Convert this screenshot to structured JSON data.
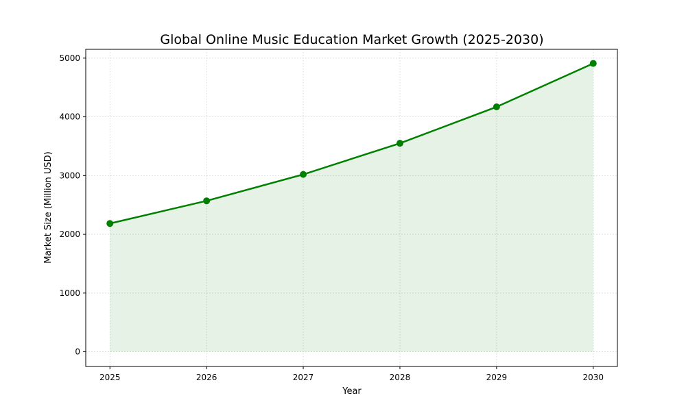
{
  "colors": {
    "line": "#008000",
    "fill": "#008000",
    "grid": "#cccccc",
    "axes": "#000000"
  },
  "chart_data": {
    "type": "area",
    "title": "Global Online Music Education Market Growth (2025-2030)",
    "xlabel": "Year",
    "ylabel": "Market Size (Million USD)",
    "categories": [
      "2025",
      "2026",
      "2027",
      "2028",
      "2029",
      "2030"
    ],
    "x": [
      2025,
      2026,
      2027,
      2028,
      2029,
      2030
    ],
    "series": [
      {
        "name": "",
        "values": [
          2185,
          2570,
          3020,
          3550,
          4170,
          4910
        ]
      }
    ],
    "ylim": [
      -250,
      5150
    ],
    "xlim": [
      2024.75,
      2030.25
    ],
    "yticks": [
      0,
      1000,
      2000,
      3000,
      4000,
      5000
    ],
    "xticks": [
      2025,
      2026,
      2027,
      2028,
      2029,
      2030
    ],
    "grid": true,
    "grid_style": "dotted",
    "markers": "circle",
    "fill_alpha": 0.1
  }
}
